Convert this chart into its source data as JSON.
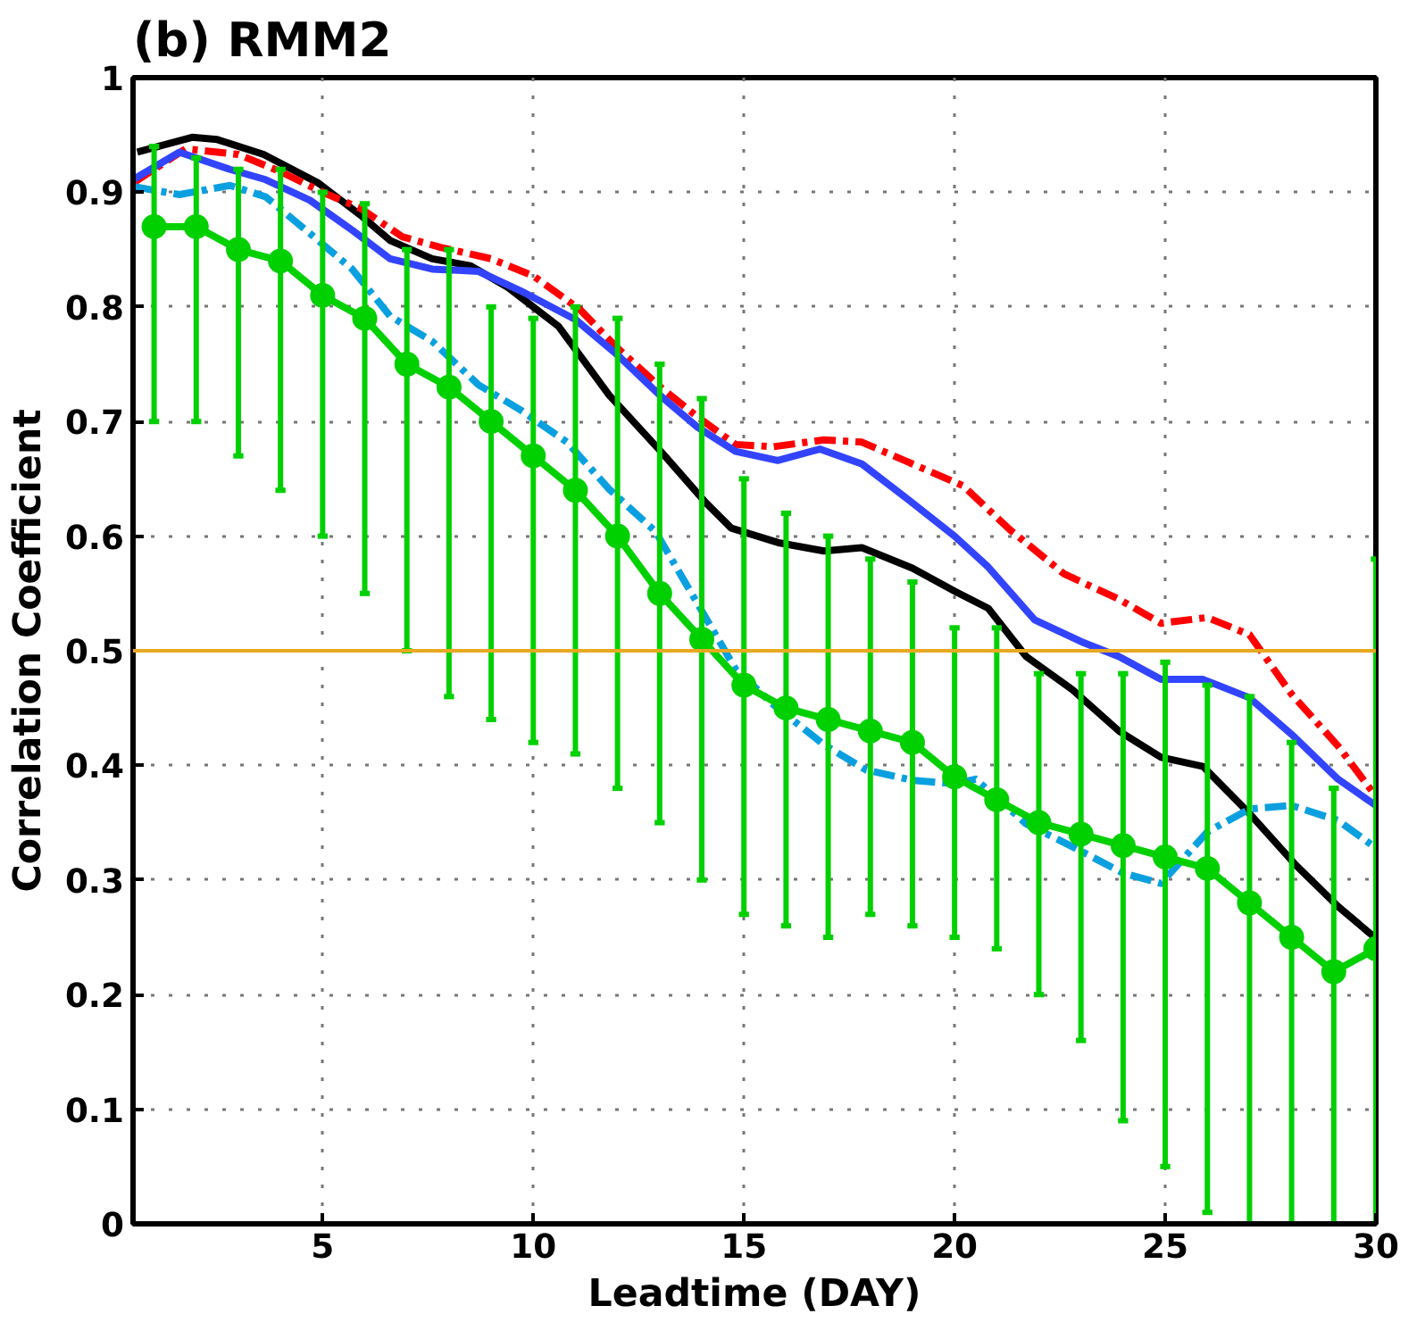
{
  "chart_data": {
    "type": "line",
    "title": "(b)  RMM2",
    "xlabel": "Leadtime (DAY)",
    "ylabel": "Correlation Coefficient",
    "xlim": [
      0.5,
      30
    ],
    "xticks": [
      5,
      10,
      15,
      20,
      25,
      30
    ],
    "ylim": [
      0,
      1
    ],
    "yticks": [
      0,
      0.1,
      0.2,
      0.3,
      0.4,
      0.5,
      0.6,
      0.7,
      0.8,
      0.9,
      1
    ],
    "grid": true,
    "ref_lines": [
      {
        "axis": "y",
        "value": 0.5,
        "color": "#e8a820"
      }
    ],
    "series": [
      {
        "color": "#000000",
        "line_style": "solid",
        "marker": "none",
        "x": [
          0.6,
          1.9,
          2.5,
          3.6,
          4.9,
          5.9,
          6.6,
          7.6,
          8.5,
          9.4,
          10.6,
          11.8,
          13.05,
          14.1,
          14.7,
          15.85,
          16.9,
          17.8,
          19,
          20,
          20.8,
          21.7,
          22.8,
          23.9,
          24.9,
          25.9,
          27,
          28.1,
          29.1,
          30
        ],
        "values": [
          0.935,
          0.948,
          0.946,
          0.933,
          0.908,
          0.88,
          0.858,
          0.842,
          0.836,
          0.817,
          0.783,
          0.723,
          0.673,
          0.629,
          0.607,
          0.594,
          0.587,
          0.59,
          0.572,
          0.552,
          0.537,
          0.495,
          0.466,
          0.43,
          0.407,
          0.399,
          0.358,
          0.313,
          0.277,
          0.249
        ]
      },
      {
        "color": "#ff0000",
        "line_style": "dashed",
        "marker": "none",
        "x": [
          0.5,
          1.75,
          3,
          4,
          5,
          5.9,
          6.9,
          7.8,
          9,
          10,
          11.1,
          12,
          13.05,
          13.9,
          14.8,
          15.7,
          16.9,
          17.8,
          19,
          20.2,
          21.3,
          22.6,
          23.9,
          24.9,
          26,
          27,
          28,
          29.1,
          30
        ],
        "values": [
          0.908,
          0.938,
          0.933,
          0.918,
          0.9,
          0.886,
          0.861,
          0.852,
          0.842,
          0.827,
          0.798,
          0.764,
          0.729,
          0.704,
          0.68,
          0.678,
          0.684,
          0.682,
          0.663,
          0.644,
          0.606,
          0.567,
          0.545,
          0.524,
          0.529,
          0.514,
          0.462,
          0.417,
          0.373
        ]
      },
      {
        "color": "#3344ff",
        "line_style": "solid",
        "marker": "none",
        "x": [
          0.5,
          1.6,
          2.8,
          3.65,
          4.7,
          5.7,
          6.6,
          7.6,
          8.7,
          9.7,
          11,
          12,
          13,
          13.9,
          14.8,
          15.8,
          16.8,
          17.8,
          19,
          20,
          20.8,
          21.9,
          23,
          23.9,
          24.9,
          25.9,
          27,
          28,
          29.1,
          30
        ],
        "values": [
          0.911,
          0.935,
          0.92,
          0.911,
          0.893,
          0.867,
          0.842,
          0.833,
          0.831,
          0.814,
          0.789,
          0.758,
          0.723,
          0.695,
          0.674,
          0.666,
          0.676,
          0.663,
          0.629,
          0.6,
          0.573,
          0.527,
          0.508,
          0.495,
          0.475,
          0.475,
          0.459,
          0.427,
          0.388,
          0.365
        ]
      },
      {
        "color": "#0aa0e0",
        "line_style": "dashed",
        "marker": "none",
        "x": [
          0.5,
          1.6,
          2.8,
          3.65,
          4.7,
          5.7,
          6.6,
          7.6,
          8.7,
          9.7,
          10.8,
          11.8,
          12.9,
          13.9,
          14.8,
          15.7,
          16.9,
          17.9,
          19,
          20,
          20.5,
          21.7,
          22.8,
          24,
          24.9,
          26,
          27,
          28,
          29.1,
          30
        ],
        "values": [
          0.905,
          0.898,
          0.906,
          0.896,
          0.864,
          0.833,
          0.792,
          0.77,
          0.732,
          0.71,
          0.682,
          0.641,
          0.604,
          0.541,
          0.484,
          0.453,
          0.418,
          0.396,
          0.387,
          0.384,
          0.388,
          0.349,
          0.329,
          0.306,
          0.297,
          0.342,
          0.362,
          0.365,
          0.352,
          0.328
        ]
      },
      {
        "color": "#00d000",
        "line_style": "solid",
        "marker": "circle",
        "x": [
          1,
          2,
          3,
          4,
          5,
          6,
          7,
          8,
          9,
          10,
          11,
          12,
          13,
          14,
          15,
          16,
          17,
          18,
          19,
          20,
          21,
          22,
          23,
          24,
          25,
          26,
          27,
          28,
          29,
          30
        ],
        "values": [
          0.87,
          0.87,
          0.85,
          0.84,
          0.81,
          0.79,
          0.75,
          0.73,
          0.7,
          0.67,
          0.64,
          0.6,
          0.55,
          0.51,
          0.47,
          0.45,
          0.44,
          0.43,
          0.42,
          0.39,
          0.37,
          0.35,
          0.34,
          0.33,
          0.32,
          0.31,
          0.28,
          0.25,
          0.22,
          0.24
        ],
        "errors": [
          [
            0.7,
            0.94
          ],
          [
            0.7,
            0.93
          ],
          [
            0.67,
            0.92
          ],
          [
            0.64,
            0.92
          ],
          [
            0.6,
            0.9
          ],
          [
            0.55,
            0.89
          ],
          [
            0.5,
            0.85
          ],
          [
            0.46,
            0.85
          ],
          [
            0.44,
            0.8
          ],
          [
            0.42,
            0.79
          ],
          [
            0.41,
            0.8
          ],
          [
            0.38,
            0.79
          ],
          [
            0.35,
            0.75
          ],
          [
            0.3,
            0.72
          ],
          [
            0.27,
            0.65
          ],
          [
            0.26,
            0.62
          ],
          [
            0.25,
            0.6
          ],
          [
            0.27,
            0.58
          ],
          [
            0.26,
            0.56
          ],
          [
            0.25,
            0.52
          ],
          [
            0.24,
            0.52
          ],
          [
            0.2,
            0.48
          ],
          [
            0.16,
            0.48
          ],
          [
            0.09,
            0.48
          ],
          [
            0.05,
            0.49
          ],
          [
            0.01,
            0.47
          ],
          [
            0,
            0.46
          ],
          [
            0,
            0.42
          ],
          [
            0,
            0.38
          ],
          [
            0,
            0.58
          ]
        ]
      }
    ]
  }
}
